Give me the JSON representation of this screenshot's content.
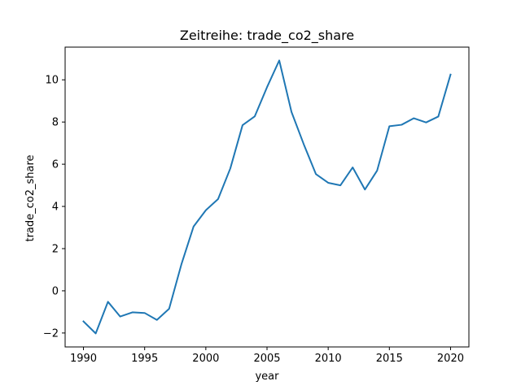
{
  "chart_data": {
    "type": "line",
    "title": "Zeitreihe: trade_co2_share",
    "xlabel": "year",
    "ylabel": "trade_co2_share",
    "xlim": [
      1988.5,
      2021.5
    ],
    "ylim": [
      -2.66,
      11.55
    ],
    "xticks": [
      1990,
      1995,
      2000,
      2005,
      2010,
      2015,
      2020
    ],
    "yticks": [
      -2,
      0,
      2,
      4,
      6,
      8,
      10
    ],
    "grid": false,
    "legend": "none",
    "series": [
      {
        "color": "#1f77b4",
        "x": [
          1990,
          1991,
          1992,
          1993,
          1994,
          1995,
          1996,
          1997,
          1998,
          1999,
          2000,
          2001,
          2002,
          2003,
          2004,
          2005,
          2006,
          2007,
          2008,
          2009,
          2010,
          2011,
          2012,
          2013,
          2014,
          2015,
          2016,
          2017,
          2018,
          2019,
          2020
        ],
        "y": [
          -1.45,
          -2.02,
          -0.52,
          -1.22,
          -1.02,
          -1.05,
          -1.38,
          -0.85,
          1.25,
          3.05,
          3.82,
          4.35,
          5.8,
          7.85,
          8.27,
          9.65,
          10.92,
          8.48,
          6.95,
          5.53,
          5.12,
          5.0,
          5.85,
          4.8,
          5.7,
          7.8,
          7.87,
          8.18,
          7.98,
          8.26,
          10.25
        ]
      }
    ]
  }
}
